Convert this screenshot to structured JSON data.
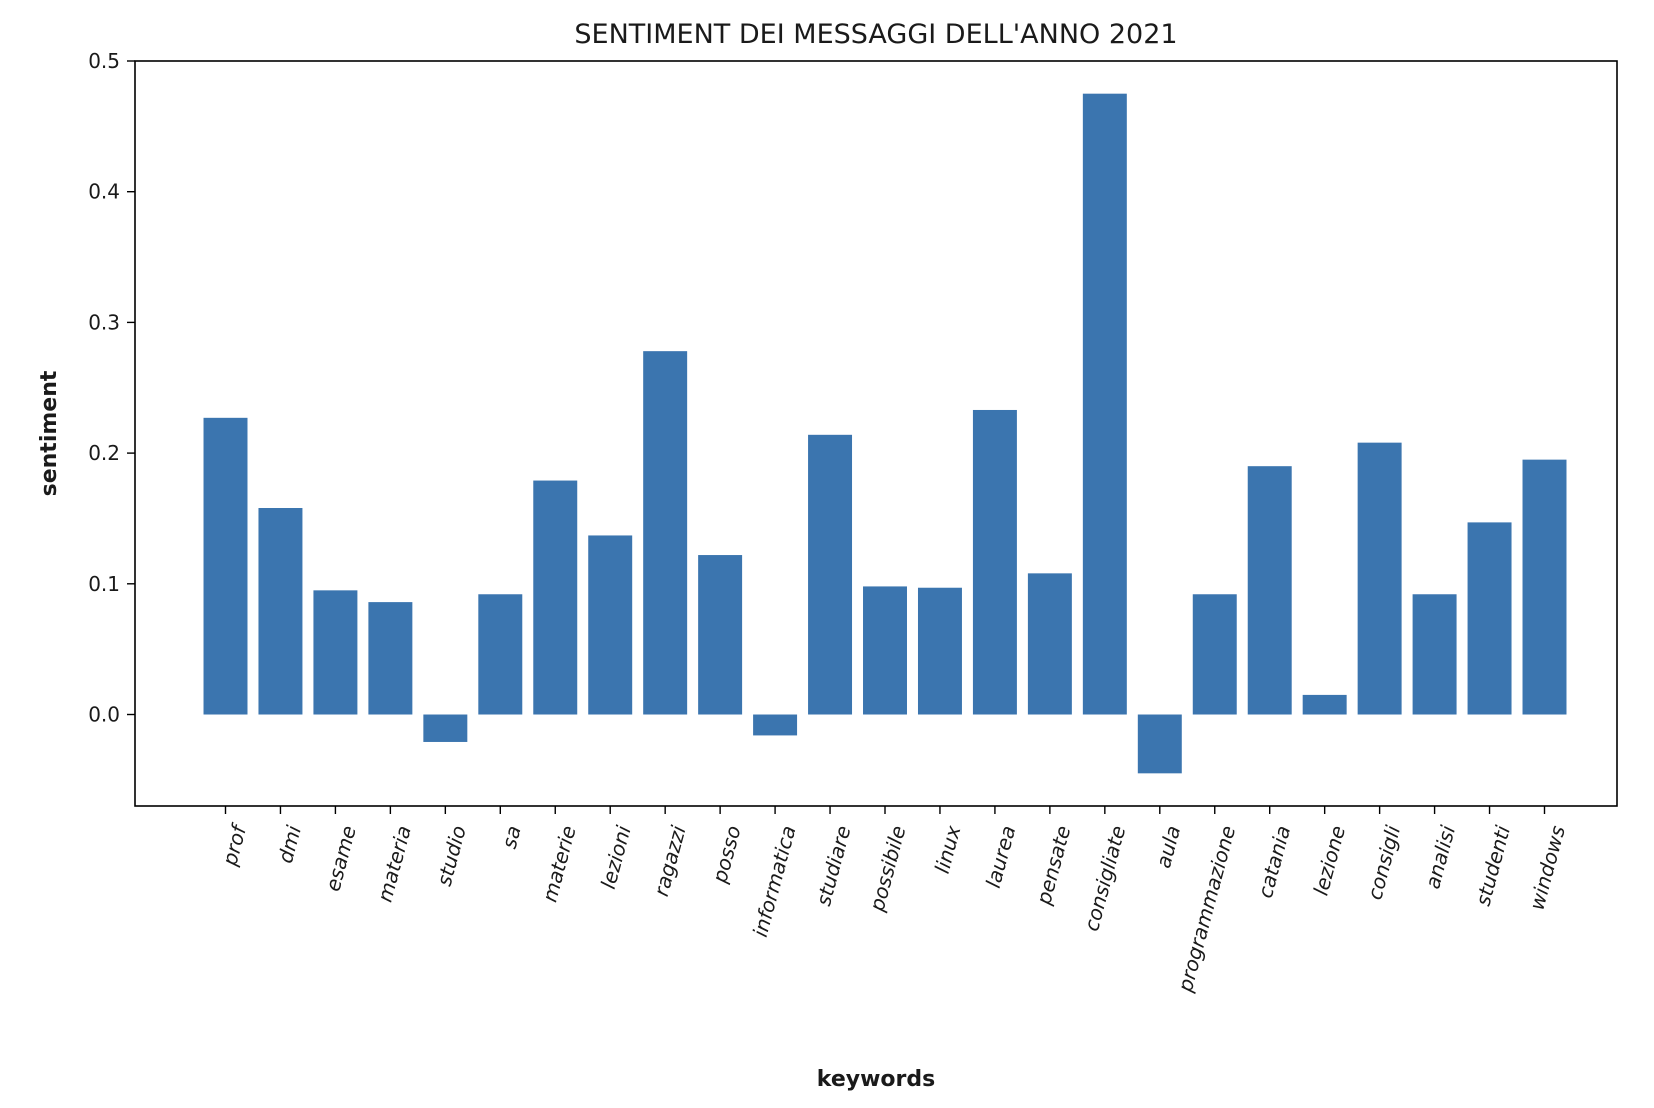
{
  "chart_data": {
    "type": "bar",
    "title": "SENTIMENT DEI MESSAGGI DELL'ANNO 2021",
    "xlabel": "keywords",
    "ylabel": "sentiment",
    "ylim": [
      -0.07,
      0.5
    ],
    "yticks": [
      0.0,
      0.1,
      0.2,
      0.3,
      0.4,
      0.5
    ],
    "ytick_labels": [
      "0.0",
      "0.1",
      "0.2",
      "0.3",
      "0.4",
      "0.5"
    ],
    "grid": false,
    "bar_color": "#3b75af",
    "categories": [
      "prof",
      "dmi",
      "esame",
      "materia",
      "studio",
      "sa",
      "materie",
      "lezioni",
      "ragazzi",
      "posso",
      "informatica",
      "studiare",
      "possibile",
      "linux",
      "laurea",
      "pensate",
      "consigliate",
      "aula",
      "programmazione",
      "catania",
      "lezione",
      "consigli",
      "analisi",
      "studenti",
      "windows"
    ],
    "values": [
      0.227,
      0.158,
      0.095,
      0.086,
      -0.021,
      0.092,
      0.179,
      0.137,
      0.278,
      0.122,
      -0.016,
      0.214,
      0.098,
      0.097,
      0.233,
      0.108,
      0.475,
      -0.045,
      0.092,
      0.19,
      0.015,
      0.208,
      0.092,
      0.147,
      0.195
    ]
  }
}
